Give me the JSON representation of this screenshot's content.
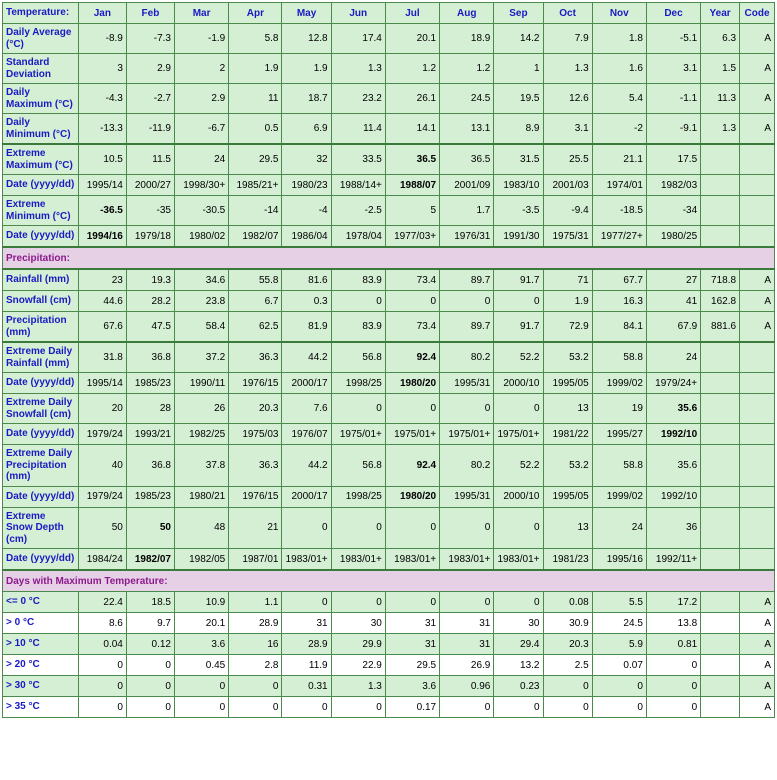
{
  "colors": {
    "header_text": "#1a1ac4",
    "shade_bg": "#d4efd4",
    "section_bg": "#e6d0e6",
    "section_text": "#8b1a8b",
    "border": "#4a8a4a",
    "border_thick": "#3a7a3a",
    "body_text": "#000000"
  },
  "header": {
    "label": "Temperature:",
    "months": [
      "Jan",
      "Feb",
      "Mar",
      "Apr",
      "May",
      "Jun",
      "Jul",
      "Aug",
      "Sep",
      "Oct",
      "Nov",
      "Dec"
    ],
    "year": "Year",
    "code": "Code"
  },
  "sections": {
    "precip": "Precipitation:",
    "daysmax": "Days with Maximum Temperature:"
  },
  "rows": [
    {
      "key": "daily_avg",
      "label": "Daily Average (°C)",
      "shade": true,
      "vals": [
        "-8.9",
        "-7.3",
        "-1.9",
        "5.8",
        "12.8",
        "17.4",
        "20.1",
        "18.9",
        "14.2",
        "7.9",
        "1.8",
        "-5.1",
        "6.3",
        "A"
      ]
    },
    {
      "key": "std_dev",
      "label": "Standard Deviation",
      "shade": true,
      "vals": [
        "3",
        "2.9",
        "2",
        "1.9",
        "1.9",
        "1.3",
        "1.2",
        "1.2",
        "1",
        "1.3",
        "1.6",
        "3.1",
        "1.5",
        "A"
      ]
    },
    {
      "key": "daily_max",
      "label": "Daily Maximum (°C)",
      "shade": true,
      "vals": [
        "-4.3",
        "-2.7",
        "2.9",
        "11",
        "18.7",
        "23.2",
        "26.1",
        "24.5",
        "19.5",
        "12.6",
        "5.4",
        "-1.1",
        "11.3",
        "A"
      ]
    },
    {
      "key": "daily_min",
      "label": "Daily Minimum (°C)",
      "shade": true,
      "vals": [
        "-13.3",
        "-11.9",
        "-6.7",
        "0.5",
        "6.9",
        "11.4",
        "14.1",
        "13.1",
        "8.9",
        "3.1",
        "-2",
        "-9.1",
        "1.3",
        "A"
      ]
    },
    {
      "key": "ext_max",
      "label": "Extreme Maximum (°C)",
      "shade": true,
      "thicktop": true,
      "vals": [
        "10.5",
        "11.5",
        "24",
        "29.5",
        "32",
        "33.5",
        "36.5",
        "36.5",
        "31.5",
        "25.5",
        "21.1",
        "17.5",
        "",
        ""
      ],
      "bold": [
        6
      ]
    },
    {
      "key": "ext_max_date",
      "label": "Date (yyyy/dd)",
      "shade": true,
      "vals": [
        "1995/14",
        "2000/27",
        "1998/30+",
        "1985/21+",
        "1980/23",
        "1988/14+",
        "1988/07",
        "2001/09",
        "1983/10",
        "2001/03",
        "1974/01",
        "1982/03",
        "",
        ""
      ],
      "bold": [
        6
      ]
    },
    {
      "key": "ext_min",
      "label": "Extreme Minimum (°C)",
      "shade": true,
      "vals": [
        "-36.5",
        "-35",
        "-30.5",
        "-14",
        "-4",
        "-2.5",
        "5",
        "1.7",
        "-3.5",
        "-9.4",
        "-18.5",
        "-34",
        "",
        ""
      ],
      "bold": [
        0
      ]
    },
    {
      "key": "ext_min_date",
      "label": "Date (yyyy/dd)",
      "shade": true,
      "vals": [
        "1994/16",
        "1979/18",
        "1980/02",
        "1982/07",
        "1986/04",
        "1978/04",
        "1977/03+",
        "1976/31",
        "1991/30",
        "1975/31",
        "1977/27+",
        "1980/25",
        "",
        ""
      ],
      "bold": [
        0
      ]
    },
    {
      "key": "rainfall",
      "label": "Rainfall (mm)",
      "shade": true,
      "thicktop": true,
      "vals": [
        "23",
        "19.3",
        "34.6",
        "55.8",
        "81.6",
        "83.9",
        "73.4",
        "89.7",
        "91.7",
        "71",
        "67.7",
        "27",
        "718.8",
        "A"
      ]
    },
    {
      "key": "snowfall",
      "label": "Snowfall (cm)",
      "shade": true,
      "vals": [
        "44.6",
        "28.2",
        "23.8",
        "6.7",
        "0.3",
        "0",
        "0",
        "0",
        "0",
        "1.9",
        "16.3",
        "41",
        "162.8",
        "A"
      ]
    },
    {
      "key": "precip_mm",
      "label": "Precipitation (mm)",
      "shade": true,
      "vals": [
        "67.6",
        "47.5",
        "58.4",
        "62.5",
        "81.9",
        "83.9",
        "73.4",
        "89.7",
        "91.7",
        "72.9",
        "84.1",
        "67.9",
        "881.6",
        "A"
      ]
    },
    {
      "key": "ext_rain",
      "label": "Extreme Daily Rainfall (mm)",
      "shade": true,
      "thicktop": true,
      "vals": [
        "31.8",
        "36.8",
        "37.2",
        "36.3",
        "44.2",
        "56.8",
        "92.4",
        "80.2",
        "52.2",
        "53.2",
        "58.8",
        "24",
        "",
        ""
      ],
      "bold": [
        6
      ]
    },
    {
      "key": "ext_rain_date",
      "label": "Date (yyyy/dd)",
      "shade": true,
      "vals": [
        "1995/14",
        "1985/23",
        "1990/11",
        "1976/15",
        "2000/17",
        "1998/25",
        "1980/20",
        "1995/31",
        "2000/10",
        "1995/05",
        "1999/02",
        "1979/24+",
        "",
        ""
      ],
      "bold": [
        6
      ]
    },
    {
      "key": "ext_snow",
      "label": "Extreme Daily Snowfall (cm)",
      "shade": true,
      "vals": [
        "20",
        "28",
        "26",
        "20.3",
        "7.6",
        "0",
        "0",
        "0",
        "0",
        "13",
        "19",
        "35.6",
        "",
        ""
      ],
      "bold": [
        11
      ]
    },
    {
      "key": "ext_snow_date",
      "label": "Date (yyyy/dd)",
      "shade": true,
      "vals": [
        "1979/24",
        "1993/21",
        "1982/25",
        "1975/03",
        "1976/07",
        "1975/01+",
        "1975/01+",
        "1975/01+",
        "1975/01+",
        "1981/22",
        "1995/27",
        "1992/10",
        "",
        ""
      ],
      "bold": [
        11
      ]
    },
    {
      "key": "ext_precip",
      "label": "Extreme Daily Precipitation (mm)",
      "shade": true,
      "vals": [
        "40",
        "36.8",
        "37.8",
        "36.3",
        "44.2",
        "56.8",
        "92.4",
        "80.2",
        "52.2",
        "53.2",
        "58.8",
        "35.6",
        "",
        ""
      ],
      "bold": [
        6
      ]
    },
    {
      "key": "ext_precip_date",
      "label": "Date (yyyy/dd)",
      "shade": true,
      "vals": [
        "1979/24",
        "1985/23",
        "1980/21",
        "1976/15",
        "2000/17",
        "1998/25",
        "1980/20",
        "1995/31",
        "2000/10",
        "1995/05",
        "1999/02",
        "1992/10",
        "",
        ""
      ],
      "bold": [
        6
      ]
    },
    {
      "key": "ext_snowdepth",
      "label": "Extreme Snow Depth (cm)",
      "shade": true,
      "vals": [
        "50",
        "50",
        "48",
        "21",
        "0",
        "0",
        "0",
        "0",
        "0",
        "13",
        "24",
        "36",
        "",
        ""
      ],
      "bold": [
        1
      ]
    },
    {
      "key": "ext_snowdepth_date",
      "label": "Date (yyyy/dd)",
      "shade": true,
      "vals": [
        "1984/24",
        "1982/07",
        "1982/05",
        "1987/01",
        "1983/01+",
        "1983/01+",
        "1983/01+",
        "1983/01+",
        "1983/01+",
        "1981/23",
        "1995/16",
        "1992/11+",
        "",
        ""
      ],
      "bold": [
        1
      ]
    },
    {
      "key": "le0",
      "label": "<= 0 °C",
      "shade": true,
      "vals": [
        "22.4",
        "18.5",
        "10.9",
        "1.1",
        "0",
        "0",
        "0",
        "0",
        "0",
        "0.08",
        "5.5",
        "17.2",
        "",
        "A"
      ]
    },
    {
      "key": "gt0",
      "label": "> 0 °C",
      "shade": false,
      "vals": [
        "8.6",
        "9.7",
        "20.1",
        "28.9",
        "31",
        "30",
        "31",
        "31",
        "30",
        "30.9",
        "24.5",
        "13.8",
        "",
        "A"
      ]
    },
    {
      "key": "gt10",
      "label": "> 10 °C",
      "shade": true,
      "vals": [
        "0.04",
        "0.12",
        "3.6",
        "16",
        "28.9",
        "29.9",
        "31",
        "31",
        "29.4",
        "20.3",
        "5.9",
        "0.81",
        "",
        "A"
      ]
    },
    {
      "key": "gt20",
      "label": "> 20 °C",
      "shade": false,
      "vals": [
        "0",
        "0",
        "0.45",
        "2.8",
        "11.9",
        "22.9",
        "29.5",
        "26.9",
        "13.2",
        "2.5",
        "0.07",
        "0",
        "",
        "A"
      ]
    },
    {
      "key": "gt30",
      "label": "> 30 °C",
      "shade": true,
      "vals": [
        "0",
        "0",
        "0",
        "0",
        "0.31",
        "1.3",
        "3.6",
        "0.96",
        "0.23",
        "0",
        "0",
        "0",
        "",
        "A"
      ]
    },
    {
      "key": "gt35",
      "label": "> 35 °C",
      "shade": false,
      "vals": [
        "0",
        "0",
        "0",
        "0",
        "0",
        "0",
        "0.17",
        "0",
        "0",
        "0",
        "0",
        "0",
        "",
        "A"
      ]
    }
  ]
}
